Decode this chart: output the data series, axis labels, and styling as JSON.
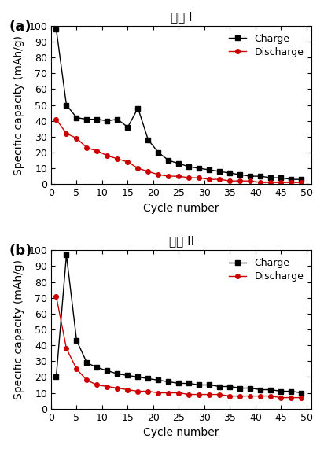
{
  "title_a": "구성 I",
  "title_b": "구성 II",
  "label_a": "(a)",
  "label_b": "(b)",
  "xlabel": "Cycle number",
  "ylabel": "Specific capacity (mAh/g)",
  "charge_color": "#000000",
  "discharge_color": "#cc0000",
  "charge_label": "Charge",
  "discharge_label": "Discharge",
  "ylim": [
    0,
    100
  ],
  "xlim": [
    0,
    51
  ],
  "xticks": [
    0,
    5,
    10,
    15,
    20,
    25,
    30,
    35,
    40,
    45,
    50
  ],
  "yticks": [
    0,
    10,
    20,
    30,
    40,
    50,
    60,
    70,
    80,
    90,
    100
  ],
  "a_charge_x": [
    1,
    3,
    5,
    7,
    9,
    11,
    13,
    15,
    17,
    19,
    21,
    23,
    25,
    27,
    29,
    31,
    33,
    35,
    37,
    39,
    41,
    43,
    45,
    47,
    49
  ],
  "a_charge_y": [
    98,
    50,
    42,
    41,
    41,
    40,
    41,
    36,
    48,
    28,
    20,
    15,
    13,
    11,
    10,
    9,
    8,
    7,
    6,
    5,
    5,
    4,
    4,
    3,
    3
  ],
  "a_discharge_x": [
    1,
    3,
    5,
    7,
    9,
    11,
    13,
    15,
    17,
    19,
    21,
    23,
    25,
    27,
    29,
    31,
    33,
    35,
    37,
    39,
    41,
    43,
    45,
    47,
    49
  ],
  "a_discharge_y": [
    41,
    32,
    29,
    23,
    21,
    18,
    16,
    14,
    10,
    8,
    6,
    5,
    5,
    4,
    4,
    3,
    3,
    2,
    2,
    2,
    1,
    1,
    1,
    1,
    1
  ],
  "b_charge_x": [
    1,
    3,
    5,
    7,
    9,
    11,
    13,
    15,
    17,
    19,
    21,
    23,
    25,
    27,
    29,
    31,
    33,
    35,
    37,
    39,
    41,
    43,
    45,
    47,
    49
  ],
  "b_charge_y": [
    20,
    97,
    43,
    29,
    26,
    24,
    22,
    21,
    20,
    19,
    18,
    17,
    16,
    16,
    15,
    15,
    14,
    14,
    13,
    13,
    12,
    12,
    11,
    11,
    10
  ],
  "b_discharge_x": [
    1,
    3,
    5,
    7,
    9,
    11,
    13,
    15,
    17,
    19,
    21,
    23,
    25,
    27,
    29,
    31,
    33,
    35,
    37,
    39,
    41,
    43,
    45,
    47,
    49
  ],
  "b_discharge_y": [
    71,
    38,
    25,
    18,
    15,
    14,
    13,
    12,
    11,
    11,
    10,
    10,
    10,
    9,
    9,
    9,
    9,
    8,
    8,
    8,
    8,
    8,
    7,
    7,
    7
  ],
  "marker_size": 4,
  "line_width": 1.0,
  "tick_fontsize": 9,
  "axis_label_fontsize": 10,
  "title_fontsize": 11,
  "legend_fontsize": 9,
  "panel_label_fontsize": 13
}
